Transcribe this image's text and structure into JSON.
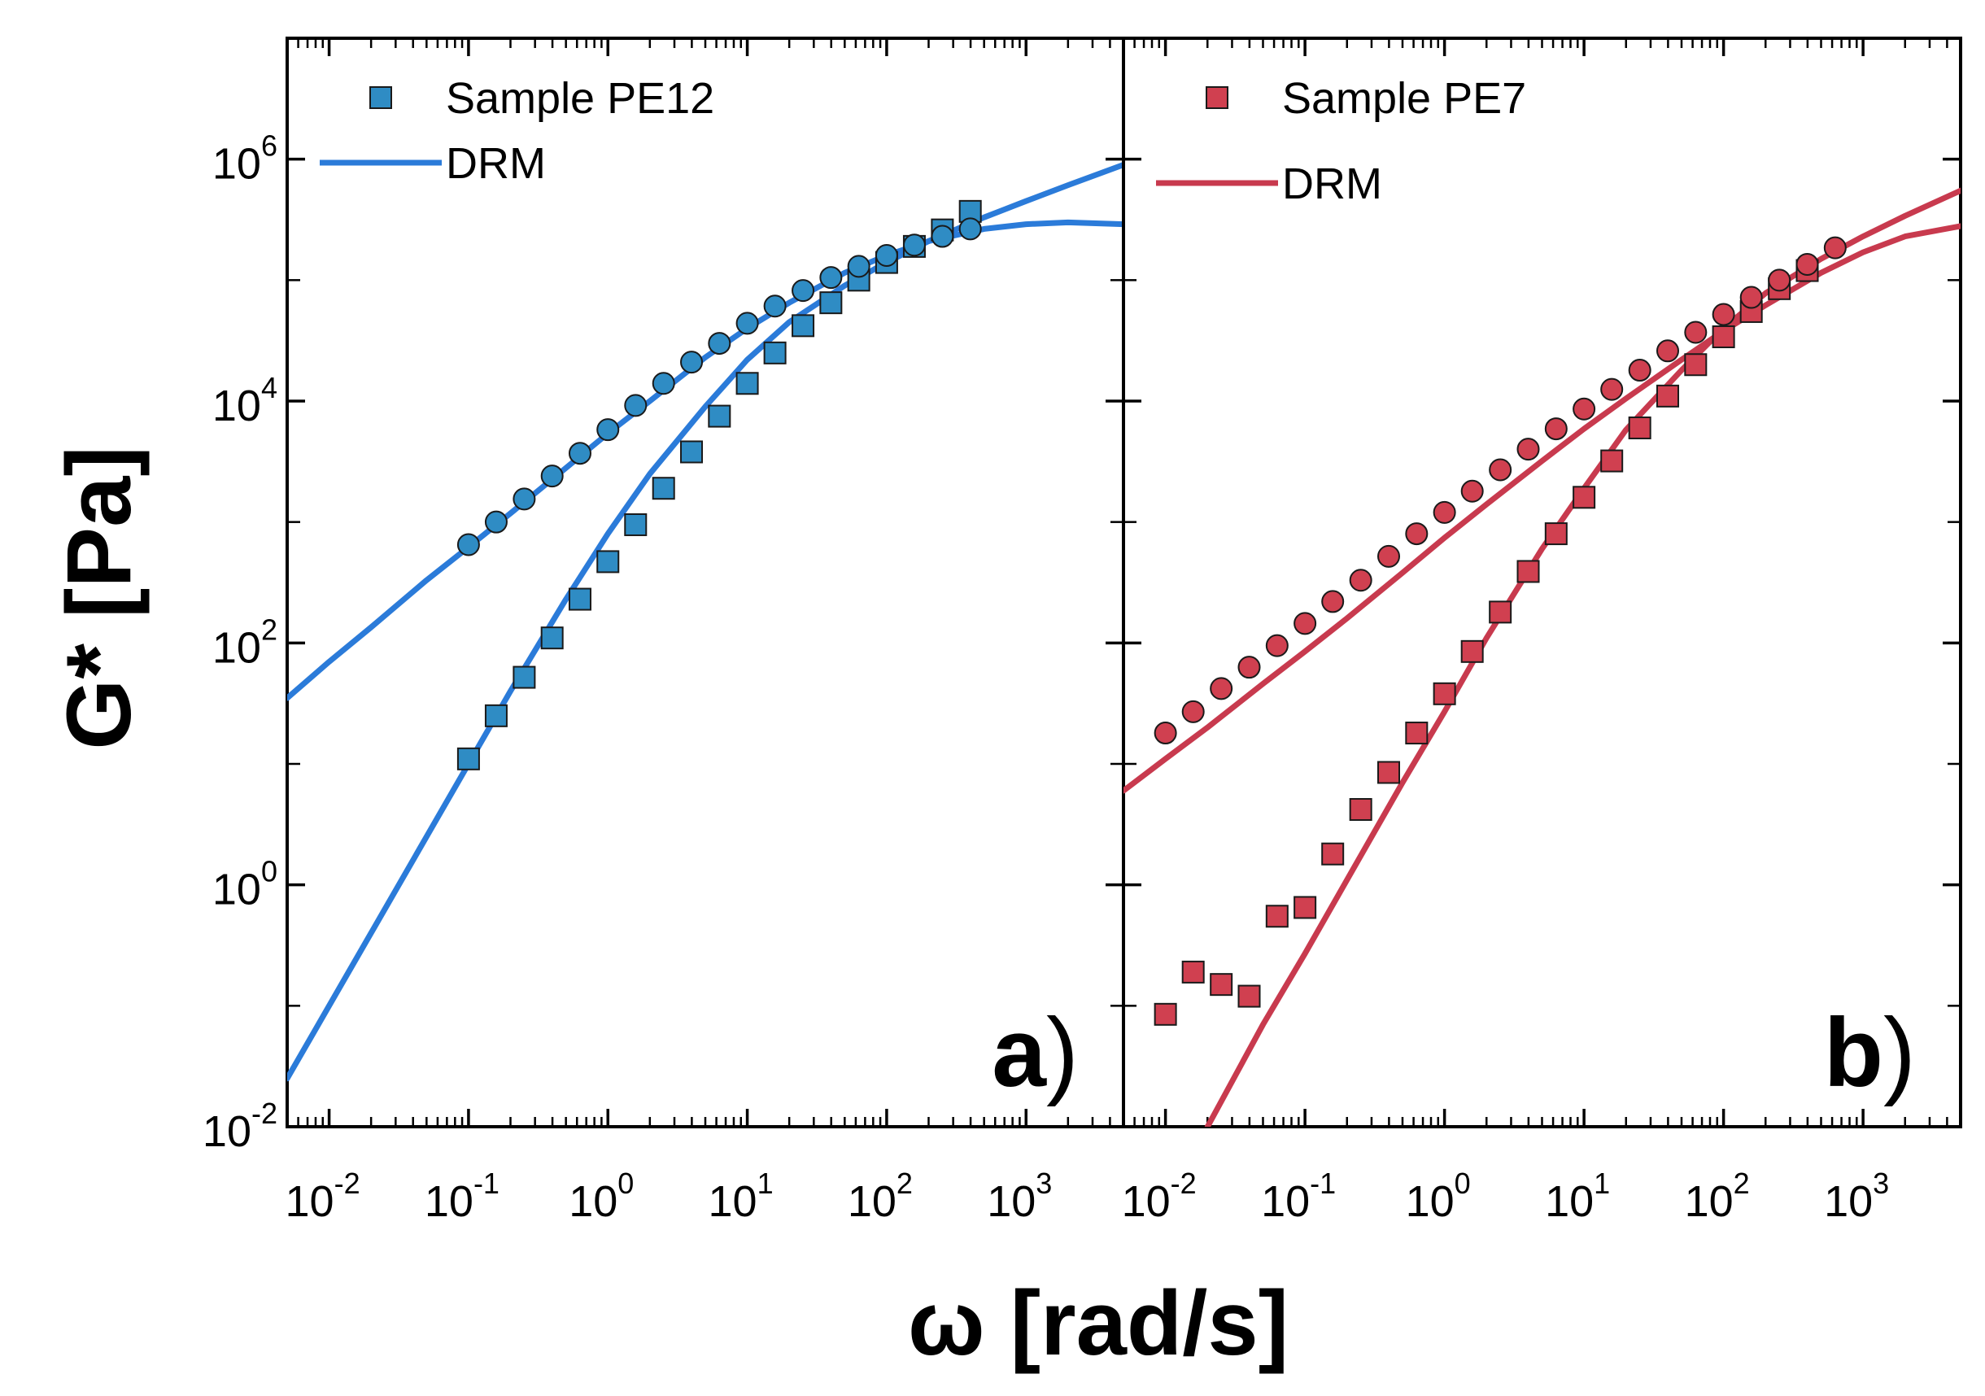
{
  "figure": {
    "ylabel": "G* [Pa]",
    "xlabel": "ω [rad/s]",
    "y_ticks": [
      {
        "base": "10",
        "exp": "6",
        "value": 1000000
      },
      {
        "base": "10",
        "exp": "4",
        "value": 10000
      },
      {
        "base": "10",
        "exp": "2",
        "value": 100
      },
      {
        "base": "10",
        "exp": "0",
        "value": 1
      },
      {
        "base": "10",
        "exp": "-2",
        "value": 0.01
      }
    ],
    "x_ticks": [
      {
        "base": "10",
        "exp": "-2",
        "value": 0.01
      },
      {
        "base": "10",
        "exp": "-1",
        "value": 0.1
      },
      {
        "base": "10",
        "exp": "0",
        "value": 1
      },
      {
        "base": "10",
        "exp": "1",
        "value": 10
      },
      {
        "base": "10",
        "exp": "2",
        "value": 100
      },
      {
        "base": "10",
        "exp": "3",
        "value": 1000
      }
    ]
  },
  "chart_data": [
    {
      "type": "scatter",
      "panel_label": "a",
      "x_scale": "log",
      "y_scale": "log",
      "xlim": [
        0.005,
        5000
      ],
      "ylim": [
        0.01,
        10000000
      ],
      "legend": {
        "position": "top-left",
        "entries": [
          "Sample PE12",
          "DRM"
        ]
      },
      "colors": {
        "marker": "#2F8CC4",
        "line": "#2B7BD9"
      },
      "series": [
        {
          "name": "Sample PE12",
          "role": "squares",
          "marker": "square",
          "x": [
            0.1,
            0.158,
            0.251,
            0.398,
            0.631,
            1.0,
            1.58,
            2.51,
            3.98,
            6.31,
            10.0,
            15.8,
            25.1,
            39.8,
            63.1,
            100,
            158,
            251,
            398
          ],
          "y": [
            11,
            25,
            52,
            110,
            230,
            470,
            950,
            1900,
            3800,
            7500,
            14000,
            25000,
            42000,
            65000,
            100000,
            140000,
            190000,
            260000,
            370000
          ]
        },
        {
          "role": "circles",
          "marker": "circle",
          "x": [
            0.1,
            0.158,
            0.251,
            0.398,
            0.631,
            1.0,
            1.58,
            2.51,
            3.98,
            6.31,
            10.0,
            15.8,
            25.1,
            39.8,
            63.1,
            100,
            158,
            251,
            398
          ],
          "y": [
            650,
            1000,
            1550,
            2400,
            3700,
            5800,
            9200,
            14000,
            21000,
            30000,
            44000,
            61000,
            82000,
            105000,
            130000,
            160000,
            195000,
            230000,
            265000
          ]
        },
        {
          "name": "DRM",
          "role": "fit-storage",
          "marker": "line",
          "x": [
            0.005,
            0.01,
            0.02,
            0.05,
            0.1,
            0.2,
            0.5,
            1,
            2,
            5,
            10,
            20,
            50,
            100,
            200,
            500,
            1000,
            2000,
            5000
          ],
          "y": [
            0.025,
            0.1,
            0.4,
            2.5,
            10,
            40,
            230,
            800,
            2500,
            9000,
            22000,
            45000,
            90000,
            140000,
            210000,
            330000,
            450000,
            610000,
            900000
          ]
        },
        {
          "role": "fit-magnitude",
          "marker": "line",
          "x": [
            0.005,
            0.01,
            0.02,
            0.05,
            0.1,
            0.2,
            0.5,
            1,
            2,
            5,
            10,
            20,
            50,
            100,
            200,
            500,
            1000,
            2000,
            5000
          ],
          "y": [
            35,
            70,
            135,
            330,
            620,
            1180,
            2800,
            5400,
            10000,
            23000,
            40000,
            65000,
            115000,
            160000,
            210000,
            265000,
            290000,
            300000,
            290000
          ]
        }
      ]
    },
    {
      "type": "scatter",
      "panel_label": "b",
      "x_scale": "log",
      "y_scale": "log",
      "xlim": [
        0.005,
        5000
      ],
      "ylim": [
        0.01,
        10000000
      ],
      "legend": {
        "position": "top-left",
        "entries": [
          "Sample PE7",
          "DRM"
        ]
      },
      "colors": {
        "marker": "#D04050",
        "line": "#C83A4E"
      },
      "series": [
        {
          "name": "Sample PE7",
          "role": "squares",
          "marker": "square",
          "x": [
            0.01,
            0.0158,
            0.0251,
            0.0398,
            0.0631,
            0.1,
            0.158,
            0.251,
            0.398,
            0.631,
            1.0,
            1.58,
            2.51,
            3.98,
            6.31,
            10.0,
            15.8,
            25.1,
            39.8,
            63.1,
            100,
            158,
            251,
            398
          ],
          "y": [
            0.085,
            0.19,
            0.15,
            0.12,
            0.55,
            0.65,
            1.8,
            4.2,
            8.5,
            18,
            38,
            85,
            180,
            390,
            800,
            1600,
            3200,
            6000,
            11000,
            20000,
            34000,
            55000,
            85000,
            120000
          ]
        },
        {
          "role": "circles",
          "marker": "circle",
          "x": [
            0.01,
            0.0158,
            0.0251,
            0.0398,
            0.0631,
            0.1,
            0.158,
            0.251,
            0.398,
            0.631,
            1.0,
            1.58,
            2.51,
            3.98,
            6.31,
            10.0,
            15.8,
            25.1,
            39.8,
            63.1,
            100,
            158,
            251,
            398,
            631
          ],
          "y": [
            18,
            27,
            42,
            63,
            95,
            145,
            220,
            330,
            520,
            800,
            1200,
            1800,
            2700,
            4000,
            5900,
            8600,
            12500,
            18000,
            26000,
            37000,
            52000,
            72000,
            100000,
            135000,
            185000
          ]
        },
        {
          "name": "DRM",
          "role": "fit-storage",
          "marker": "line",
          "x": [
            0.02,
            0.05,
            0.1,
            0.2,
            0.5,
            1,
            2,
            5,
            10,
            20,
            50,
            100,
            200,
            500,
            1000,
            2000,
            5000
          ],
          "y": [
            0.01,
            0.07,
            0.27,
            1.1,
            7,
            27,
            110,
            600,
            1900,
            5800,
            18000,
            40000,
            78000,
            150000,
            230000,
            340000,
            550000
          ]
        },
        {
          "role": "fit-magnitude",
          "marker": "line",
          "x": [
            0.005,
            0.01,
            0.02,
            0.05,
            0.1,
            0.2,
            0.5,
            1,
            2,
            5,
            10,
            20,
            50,
            100,
            200,
            500,
            1000,
            2000,
            5000
          ],
          "y": [
            6,
            11,
            20,
            46,
            85,
            160,
            380,
            740,
            1400,
            3200,
            5900,
            10500,
            22000,
            38000,
            62000,
            115000,
            170000,
            230000,
            280000
          ]
        }
      ]
    }
  ]
}
